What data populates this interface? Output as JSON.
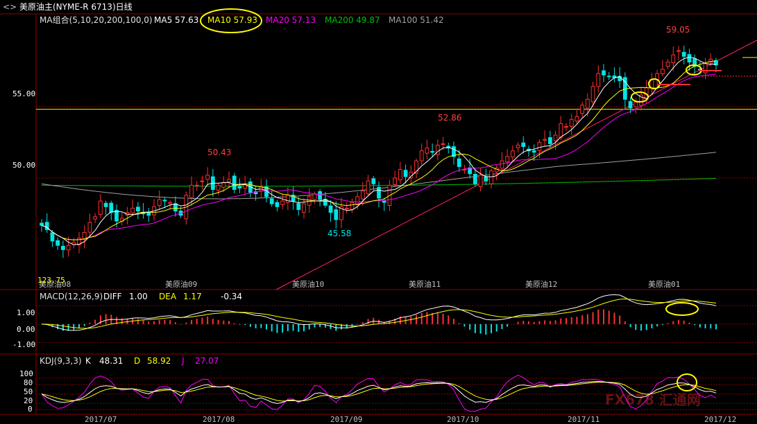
{
  "window": {
    "title": "美原油主(NYME-R 6713)日线",
    "back_icon": "chevron-left-icon"
  },
  "price_panel": {
    "ma_label": "MA组合(5,10,20,200,100,0)",
    "ma5": "MA5 57.63",
    "ma10": "MA10 57.93",
    "ma20": "MA20 57.13",
    "ma200": "MA200 49.87",
    "ma100": "MA100 51.42",
    "y_ticks": [
      "55.00",
      "50.00"
    ],
    "contract_labels": [
      "美原油08",
      "美原油09",
      "美原油10",
      "美原油11",
      "美原油12",
      "美原油01"
    ],
    "low_label": "123.75"
  },
  "macd_panel": {
    "label": "MACD(12,26,9)",
    "diff_label": "DIFF",
    "diff_value": "1.00",
    "dea_label": "DEA",
    "dea_value": "1.17",
    "macd_value": "-0.34",
    "y_ticks": [
      "1.00",
      "0.00",
      "-1.00"
    ]
  },
  "kdj_panel": {
    "label": "KDJ(9,3,3)",
    "k_label": "K",
    "k_value": "48.31",
    "d_label": "D",
    "d_value": "58.92",
    "j_label": "J",
    "j_value": "27.07",
    "y_ticks": [
      "100",
      "80",
      "50",
      "20",
      "0"
    ]
  },
  "x_axis": {
    "ticks": [
      "2017/07",
      "2017/08",
      "2017/09",
      "2017/10",
      "2017/11",
      "2017/12"
    ]
  },
  "watermark": "FX678 汇通网",
  "colors": {
    "up": "#ff3030",
    "down": "#00e5e5",
    "ma5": "#ffffff",
    "ma10": "#ffff00",
    "ma20": "#ff00ff",
    "ma200": "#00c000",
    "ma100": "#a0a0a0",
    "grid": "#8b0000",
    "highlight": "#ffff00"
  },
  "chart_data": [
    {
      "type": "candlestick",
      "title": "美原油主(NYME-R 6713)日线",
      "ylim": [
        42.5,
        60.5
      ],
      "annotations": [
        {
          "label": "50.43",
          "value": 50.43
        },
        {
          "label": "45.58",
          "value": 45.58
        },
        {
          "label": "52.86",
          "value": 52.86
        },
        {
          "label": "59.05",
          "value": 59.05
        }
      ],
      "reference_line": 54.8,
      "moving_averages": {
        "MA5": 57.63,
        "MA10": 57.93,
        "MA20": 57.13,
        "MA200": 49.87,
        "MA100": 51.42
      },
      "close": [
        46.7,
        46.4,
        45.6,
        45.3,
        45.0,
        45.3,
        45.5,
        45.8,
        46.2,
        46.9,
        47.3,
        48.4,
        48.0,
        47.6,
        47.0,
        47.2,
        47.6,
        47.9,
        47.7,
        47.5,
        47.4,
        48.0,
        48.5,
        48.4,
        48.3,
        47.7,
        47.4,
        48.8,
        49.5,
        49.5,
        49.8,
        50.2,
        49.2,
        49.5,
        49.7,
        49.9,
        49.2,
        49.3,
        49.6,
        49.0,
        48.9,
        49.4,
        48.7,
        48.2,
        48.0,
        48.4,
        48.8,
        48.4,
        47.8,
        48.2,
        48.7,
        48.9,
        48.5,
        48.1,
        47.6,
        47.1,
        48.0,
        47.9,
        48.3,
        48.7,
        49.1,
        49.8,
        49.6,
        48.6,
        48.3,
        49.5,
        50.0,
        50.6,
        50.1,
        50.4,
        51.2,
        51.9,
        52.1,
        51.8,
        52.3,
        52.4,
        52.1,
        51.5,
        50.8,
        50.6,
        50.3,
        49.6,
        50.2,
        49.8,
        50.5,
        50.7,
        51.2,
        51.5,
        51.9,
        52.3,
        52.2,
        51.9,
        51.8,
        52.5,
        52.7,
        52.4,
        53.0,
        53.8,
        53.6,
        54.1,
        54.3,
        55.1,
        55.5,
        56.4,
        57.3,
        57.2,
        57.1,
        57.0,
        56.8,
        55.5,
        54.9,
        55.3,
        55.8,
        56.3,
        56.9,
        57.3,
        57.6,
        58.1,
        58.6,
        58.9,
        58.5,
        58.1,
        57.8,
        57.6,
        58.0,
        58.3,
        57.9
      ]
    },
    {
      "type": "macd",
      "title": "MACD(12,26,9)",
      "ylim": [
        -1.5,
        1.6
      ],
      "DIFF": 1.0,
      "DEA": 1.17,
      "MACD": -0.34
    },
    {
      "type": "kdj",
      "title": "KDJ(9,3,3)",
      "ylim": [
        -10,
        135
      ],
      "K": 48.31,
      "D": 58.92,
      "J": 27.07
    }
  ]
}
